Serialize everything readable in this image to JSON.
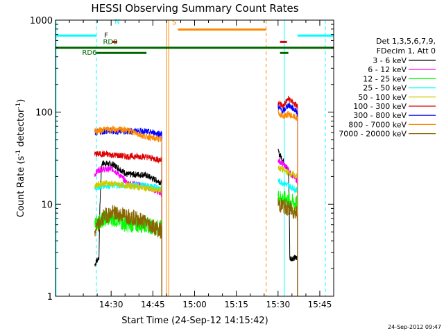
{
  "chart_data": {
    "type": "line",
    "title": "HESSI Observing Summary Count Rates",
    "xlabel": "Start Time (24-Sep-12 14:15:42)",
    "ylabel_main": "Count Rate (s",
    "ylabel_sup1": "-1",
    "ylabel_mid": " detector",
    "ylabel_sup2": "-1",
    "ylabel_end": ")",
    "y_scale": "log",
    "ylim": [
      1,
      1000
    ],
    "xlim_minutes": [
      -5.7,
      94.3
    ],
    "x_ticks": [
      {
        "label": "14:30",
        "t": 14.3
      },
      {
        "label": "14:45",
        "t": 29.3
      },
      {
        "label": "15:00",
        "t": 44.3
      },
      {
        "label": "15:15",
        "t": 59.3
      },
      {
        "label": "15:30",
        "t": 74.3
      },
      {
        "label": "15:45",
        "t": 89.3
      }
    ],
    "y_ticks": [
      {
        "label": "1",
        "v": 1
      },
      {
        "label": "10",
        "v": 10
      },
      {
        "label": "100",
        "v": 100
      },
      {
        "label": "1000",
        "v": 1000
      }
    ],
    "legend": {
      "header1": "Det 1,3,5,6,7,9,",
      "header2": "FDecim 1, Att 0",
      "entries": [
        {
          "label": "3 - 6 keV",
          "color": "#000000"
        },
        {
          "label": "6 - 12 keV",
          "color": "#ff00ff"
        },
        {
          "label": "12 - 25 keV",
          "color": "#00ff00"
        },
        {
          "label": "25 - 50 keV",
          "color": "#00ffff"
        },
        {
          "label": "50 - 100 keV",
          "color": "#cccc00"
        },
        {
          "label": "100 - 300 keV",
          "color": "#dd0000"
        },
        {
          "label": "300 - 800 keV",
          "color": "#0000ff"
        },
        {
          "label": "800 - 7000 keV",
          "color": "#ff8800"
        },
        {
          "label": "7000 - 20000 keV",
          "color": "#886600"
        }
      ]
    },
    "segments": [
      [
        8.4,
        32.5
      ],
      [
        74.3,
        81.3
      ]
    ],
    "series": [
      {
        "name": "3 - 6 keV",
        "color": "#000000",
        "seg1": [
          [
            8.4,
            2.2
          ],
          [
            10,
            2.7
          ],
          [
            11,
            28
          ],
          [
            15,
            27
          ],
          [
            20,
            21
          ],
          [
            26,
            21
          ],
          [
            32.5,
            17
          ]
        ],
        "seg2": [
          [
            74.3,
            37
          ],
          [
            78,
            22
          ],
          [
            78.5,
            2.6
          ],
          [
            81.3,
            2.6
          ]
        ]
      },
      {
        "name": "6 - 12 keV",
        "color": "#ff00ff",
        "seg1": [
          [
            8.4,
            21
          ],
          [
            10,
            24
          ],
          [
            15,
            24
          ],
          [
            20,
            17
          ],
          [
            26,
            16
          ],
          [
            32.5,
            13
          ]
        ],
        "seg2": [
          [
            74.3,
            30
          ],
          [
            77,
            26
          ],
          [
            78.5,
            22
          ],
          [
            81.3,
            18
          ]
        ]
      },
      {
        "name": "12 - 25 keV",
        "color": "#00ff00",
        "seg1": [
          [
            8.4,
            6
          ],
          [
            12,
            7
          ],
          [
            15,
            7
          ],
          [
            20,
            6
          ],
          [
            26,
            6
          ],
          [
            32.5,
            5.5
          ]
        ],
        "seg2": [
          [
            74.3,
            12
          ],
          [
            78,
            11
          ],
          [
            81.3,
            10
          ]
        ]
      },
      {
        "name": "25 - 50 keV",
        "color": "#00ffff",
        "seg1": [
          [
            8.4,
            15
          ],
          [
            12,
            16
          ],
          [
            20,
            16
          ],
          [
            26,
            16
          ],
          [
            32.5,
            15
          ]
        ],
        "seg2": [
          [
            74.3,
            18
          ],
          [
            78,
            16
          ],
          [
            81.3,
            14
          ]
        ]
      },
      {
        "name": "50 - 100 keV",
        "color": "#cccc00",
        "seg1": [
          [
            8.4,
            16
          ],
          [
            12,
            17
          ],
          [
            20,
            16
          ],
          [
            26,
            15
          ],
          [
            32.5,
            14
          ]
        ],
        "seg2": [
          [
            74.3,
            25
          ],
          [
            78,
            22
          ],
          [
            81.3,
            20
          ]
        ]
      },
      {
        "name": "100 - 300 keV",
        "color": "#dd0000",
        "seg1": [
          [
            8.4,
            35
          ],
          [
            12,
            35
          ],
          [
            20,
            33
          ],
          [
            26,
            33
          ],
          [
            32.5,
            30
          ]
        ],
        "seg2": [
          [
            74.3,
            130
          ],
          [
            76,
            115
          ],
          [
            78,
            140
          ],
          [
            81.3,
            115
          ]
        ]
      },
      {
        "name": "300 - 800 keV",
        "color": "#0000ff",
        "seg1": [
          [
            8.4,
            60
          ],
          [
            12,
            62
          ],
          [
            20,
            62
          ],
          [
            26,
            62
          ],
          [
            32.5,
            58
          ]
        ],
        "seg2": [
          [
            74.3,
            115
          ],
          [
            76,
            100
          ],
          [
            78,
            120
          ],
          [
            81.3,
            100
          ]
        ]
      },
      {
        "name": "800 - 7000 keV",
        "color": "#ff8800",
        "seg1": [
          [
            8.4,
            62
          ],
          [
            12,
            65
          ],
          [
            20,
            64
          ],
          [
            26,
            55
          ],
          [
            32.5,
            50
          ]
        ],
        "seg2": [
          [
            74.3,
            100
          ],
          [
            76,
            90
          ],
          [
            78,
            95
          ],
          [
            81.3,
            85
          ]
        ]
      },
      {
        "name": "7000 - 20000 keV",
        "color": "#886600",
        "seg1": [
          [
            8.4,
            5
          ],
          [
            12,
            7.5
          ],
          [
            15,
            8
          ],
          [
            20,
            7.5
          ],
          [
            26,
            6.5
          ],
          [
            32.5,
            5
          ]
        ],
        "seg2": [
          [
            74.3,
            10
          ],
          [
            78,
            9
          ],
          [
            81.3,
            8
          ]
        ]
      }
    ],
    "event_bars": [
      {
        "label": "N",
        "color": "#00ffff",
        "bar_y": 680,
        "label_y": 910,
        "label_t": 16.5,
        "label_color": "#00ffff",
        "ranges": [
          [
            -5.7,
            9.0
          ],
          [
            81.3,
            94.3
          ]
        ]
      },
      {
        "label": "F",
        "color": "#dd0000",
        "bar_y": 580,
        "label_y": 650,
        "label_t": 12.5,
        "label_color": "#000000",
        "ranges": [
          [
            14.6,
            16.5
          ],
          [
            75.0,
            77.5
          ]
        ]
      },
      {
        "label": "RD0",
        "color": "#006600",
        "bar_y": 500,
        "label_y": 550,
        "label_t": 14.0,
        "label_color": "#006600",
        "ranges": [
          [
            -5.7,
            94.3
          ]
        ]
      },
      {
        "label": "RD6",
        "color": "#006600",
        "bar_y": 440,
        "label_y": 420,
        "label_t": 6.5,
        "label_color": "#006600",
        "ranges": [
          [
            9.0,
            27.0
          ],
          [
            75.0,
            78.0
          ]
        ]
      },
      {
        "label": "S",
        "color": "#ff8800",
        "bar_y": 790,
        "label_y": 890,
        "label_t": 37.0,
        "label_color": "#ff8800",
        "ranges": [
          [
            38.3,
            70.0
          ]
        ]
      }
    ],
    "vlines": [
      {
        "t": -5.5,
        "color": "#00ffff",
        "dash": false
      },
      {
        "t": 9.0,
        "color": "#00ffff",
        "dash": true
      },
      {
        "t": 34.2,
        "color": "#ff8800",
        "dash": false
      },
      {
        "t": 35.0,
        "color": "#ff8800",
        "dash": false
      },
      {
        "t": 70.0,
        "color": "#ff8800",
        "dash": true
      },
      {
        "t": 76.5,
        "color": "#00ffff",
        "dash": false
      },
      {
        "t": 91.3,
        "color": "#00ffff",
        "dash": true
      }
    ],
    "timestamp": "24-Sep-2012 09:47"
  }
}
